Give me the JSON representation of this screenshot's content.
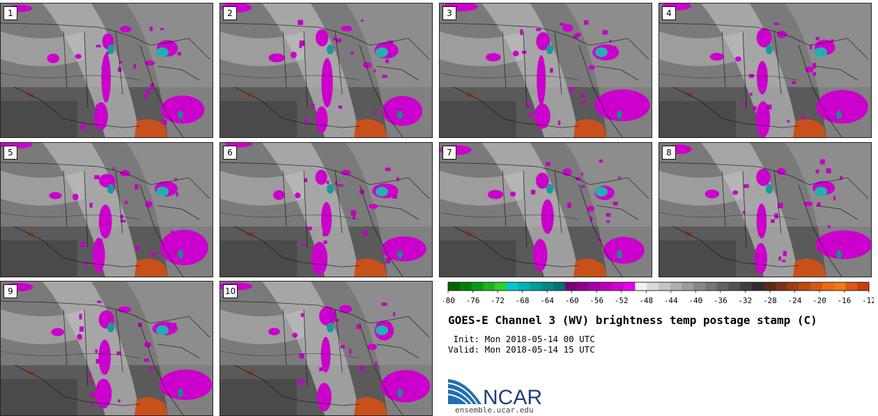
{
  "panels": [
    {
      "label": "1"
    },
    {
      "label": "2"
    },
    {
      "label": "3"
    },
    {
      "label": "4"
    },
    {
      "label": "5"
    },
    {
      "label": "6"
    },
    {
      "label": "7"
    },
    {
      "label": "8"
    },
    {
      "label": "9"
    },
    {
      "label": "10"
    }
  ],
  "colorbar": {
    "tick_labels": [
      "-80",
      "-76",
      "-72",
      "-68",
      "-64",
      "-60",
      "-56",
      "-52",
      "-48",
      "-44",
      "-40",
      "-36",
      "-32",
      "-28",
      "-24",
      "-20",
      "-16",
      "-12"
    ],
    "colors": [
      "#006400",
      "#007f0a",
      "#0a9a12",
      "#1bb51b",
      "#2fd12f",
      "#00c8c8",
      "#00b2b2",
      "#009c9c",
      "#008787",
      "#007272",
      "#7a007a",
      "#8f008f",
      "#a500a5",
      "#bb00bb",
      "#d000d0",
      "#e600e6",
      "#f0f0f0",
      "#d9d9d9",
      "#c4c4c4",
      "#b0b0b0",
      "#9c9c9c",
      "#888888",
      "#757575",
      "#626262",
      "#505050",
      "#3e3e3e",
      "#2e2e2e",
      "#5a2a1a",
      "#7a3417",
      "#9a3e14",
      "#b84a12",
      "#d45810",
      "#ec6a10",
      "#f07a10",
      "#e0541a",
      "#c83c12"
    ]
  },
  "title": "GOES-E Channel 3 (WV) brightness temp postage stamp (C)",
  "init": " Init: Mon 2018-05-14 00 UTC",
  "valid": "Valid: Mon 2018-05-14 15 UTC",
  "logo_text": "NCAR",
  "url": "ensemble.ucar.edu"
}
